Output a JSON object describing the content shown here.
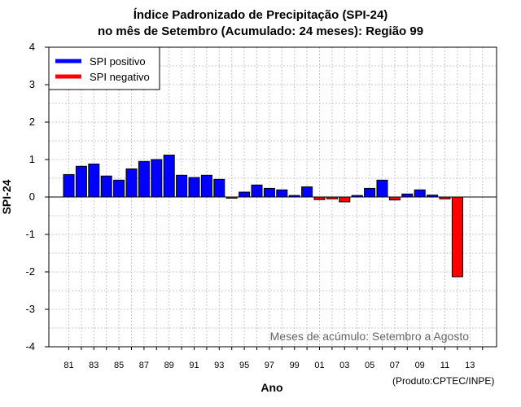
{
  "chart_data": {
    "type": "bar",
    "title": "Índice Padronizado de Precipitação (SPI-24)",
    "subtitle": "no mês de Setembro (Acumulado: 24 meses): Região 99",
    "xlabel": "Ano",
    "ylabel": "SPI-24",
    "ylim": [
      -4,
      4
    ],
    "yticks": [
      "4",
      "3",
      "2",
      "1",
      "0",
      "-1",
      "-2",
      "-3",
      "-4"
    ],
    "xtick_labels": [
      "81",
      "83",
      "85",
      "87",
      "89",
      "91",
      "93",
      "95",
      "97",
      "99",
      "01",
      "03",
      "05",
      "07",
      "09",
      "11",
      "13"
    ],
    "categories": [
      "1981",
      "1982",
      "1983",
      "1984",
      "1985",
      "1986",
      "1987",
      "1988",
      "1989",
      "1990",
      "1991",
      "1992",
      "1993",
      "1994",
      "1995",
      "1996",
      "1997",
      "1998",
      "1999",
      "2000",
      "2001",
      "2002",
      "2003",
      "2004",
      "2005",
      "2006",
      "2007",
      "2008",
      "2009",
      "2010",
      "2011",
      "2012",
      "2013",
      "2014"
    ],
    "values": [
      0.6,
      0.82,
      0.88,
      0.56,
      0.45,
      0.75,
      0.95,
      1.0,
      1.12,
      0.58,
      0.52,
      0.58,
      0.47,
      -0.03,
      0.13,
      0.32,
      0.23,
      0.19,
      0.04,
      0.27,
      -0.07,
      -0.05,
      -0.13,
      0.04,
      0.23,
      0.45,
      -0.08,
      0.08,
      0.19,
      0.05,
      -0.05,
      -2.13,
      null,
      null
    ],
    "legend": [
      {
        "label": "SPI positivo",
        "color": "#0000ff"
      },
      {
        "label": "SPI negativo",
        "color": "#ff0000"
      }
    ],
    "legend_position": "top-left",
    "grid": true,
    "annotation": "Meses de acúmulo: Setembro a Agosto",
    "credit": "(Produto:CPTEC/INPE)",
    "colors": {
      "positive": "#0000ff",
      "negative": "#ff0000",
      "grid": "#c8c8c8"
    }
  }
}
